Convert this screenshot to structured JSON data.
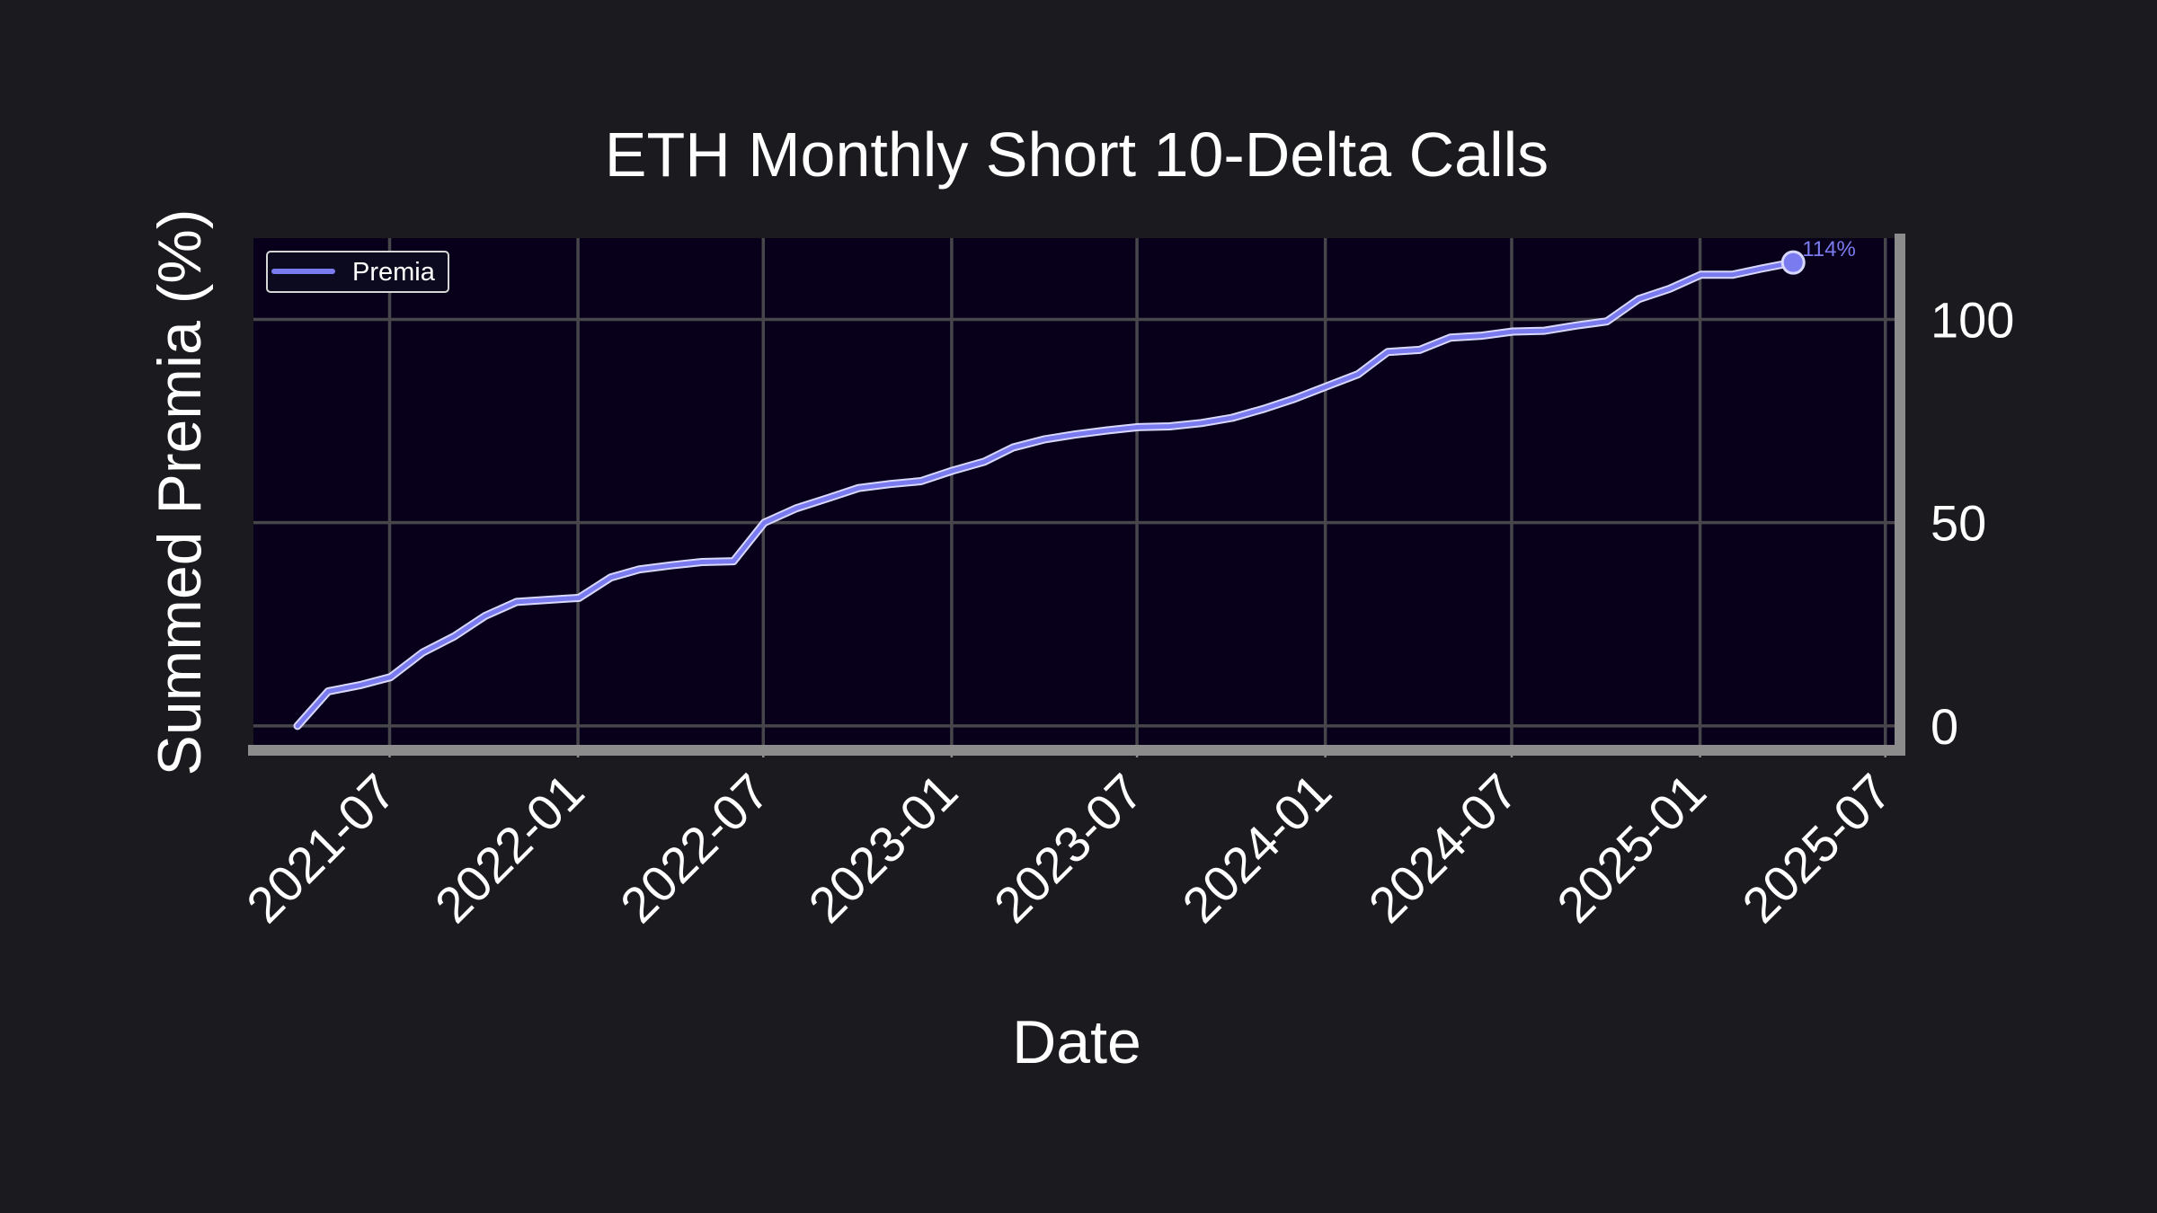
{
  "chart_data": {
    "type": "line",
    "title": "ETH Monthly Short 10-Delta Calls",
    "xlabel": "Date",
    "ylabel": "Summed Premia (%)",
    "x_tick_labels": [
      "2021-07",
      "2022-01",
      "2022-07",
      "2023-01",
      "2023-07",
      "2024-01",
      "2024-07",
      "2025-01",
      "2025-07"
    ],
    "x_ticks": [
      "2021-07-01",
      "2022-01-01",
      "2022-07-01",
      "2023-01-01",
      "2023-07-01",
      "2024-01-01",
      "2024-07-01",
      "2025-01-01",
      "2025-07-01"
    ],
    "xlim": [
      "2021-02-18",
      "2025-07-10"
    ],
    "y_tick_labels": [
      "0",
      "50",
      "100"
    ],
    "y_ticks": [
      0,
      50,
      100
    ],
    "ylim": [
      -6,
      120
    ],
    "y_axis_side": "right",
    "grid": true,
    "legend": {
      "position": "top-left",
      "entries": [
        "Premia"
      ]
    },
    "colors": {
      "background": "#1b1a1f",
      "plot_background": "#08001a",
      "grid": "#46464b",
      "line": "#7b7bf0",
      "line_outline": "#d8d8ff",
      "text": "#ffffff",
      "spine": "#8c8c8c"
    },
    "annotation": {
      "text": "114%",
      "x": "2025-04-02",
      "y": 114
    },
    "series": [
      {
        "name": "Premia",
        "x": [
          "2021-04-02",
          "2021-05-02",
          "2021-06-02",
          "2021-07-02",
          "2021-08-02",
          "2021-09-02",
          "2021-10-02",
          "2021-11-02",
          "2021-12-02",
          "2022-01-02",
          "2022-02-02",
          "2022-03-02",
          "2022-04-02",
          "2022-05-02",
          "2022-06-02",
          "2022-07-02",
          "2022-08-02",
          "2022-09-02",
          "2022-10-02",
          "2022-11-02",
          "2022-12-02",
          "2023-01-02",
          "2023-02-02",
          "2023-03-02",
          "2023-04-02",
          "2023-05-02",
          "2023-06-02",
          "2023-07-02",
          "2023-08-02",
          "2023-09-02",
          "2023-10-02",
          "2023-11-02",
          "2023-12-02",
          "2024-01-02",
          "2024-02-02",
          "2024-03-02",
          "2024-04-02",
          "2024-05-02",
          "2024-06-02",
          "2024-07-02",
          "2024-08-02",
          "2024-09-02",
          "2024-10-02",
          "2024-11-02",
          "2024-12-02",
          "2025-01-02",
          "2025-02-02",
          "2025-03-02",
          "2025-04-02"
        ],
        "values": [
          0.0,
          8.5,
          10.0,
          12.0,
          18.0,
          22.0,
          27.0,
          30.5,
          31.0,
          31.5,
          36.5,
          38.5,
          39.5,
          40.3,
          40.5,
          50.0,
          53.5,
          56.0,
          58.5,
          59.5,
          60.2,
          62.8,
          65.0,
          68.5,
          70.5,
          71.7,
          72.7,
          73.5,
          73.7,
          74.5,
          75.8,
          78.0,
          80.5,
          83.5,
          86.5,
          92.0,
          92.5,
          95.5,
          96.0,
          97.0,
          97.2,
          98.5,
          99.5,
          105.0,
          107.5,
          111.0,
          111.0,
          112.5,
          114.0
        ]
      }
    ]
  }
}
